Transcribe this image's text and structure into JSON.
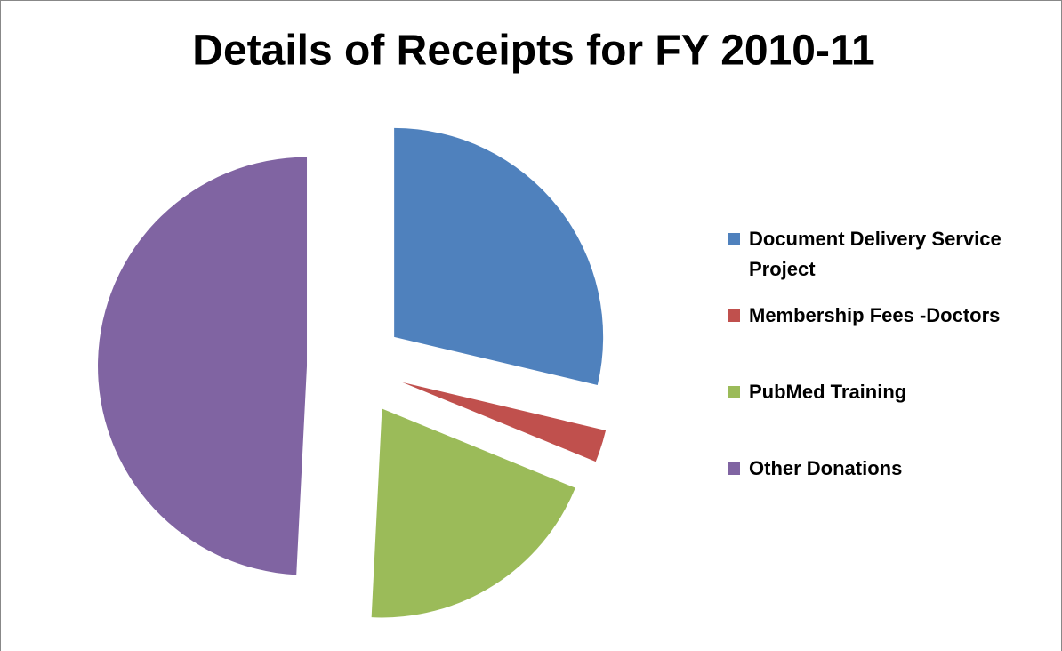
{
  "chart_data": {
    "type": "pie",
    "title": "Details of Receipts for FY 2010-11",
    "categories": [
      "Document Delivery Service Project",
      "Membership Fees -Doctors",
      "PubMed Training",
      "Other Donations"
    ],
    "values": [
      28.7,
      2.5,
      19.6,
      49.2
    ],
    "colors": [
      "#4f81bd",
      "#c0504d",
      "#9bbb59",
      "#8064a2"
    ],
    "exploded": true,
    "legend": "right"
  }
}
